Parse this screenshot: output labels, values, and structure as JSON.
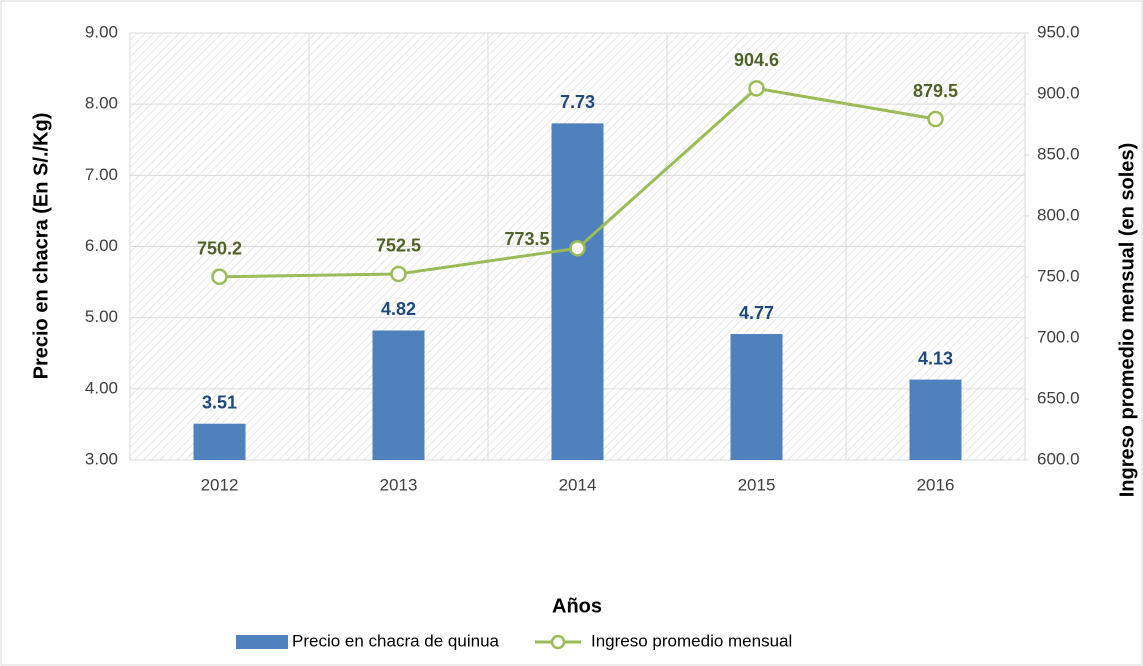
{
  "chart_data": {
    "type": "combo",
    "categories": [
      "2012",
      "2013",
      "2014",
      "2015",
      "2016"
    ],
    "series": [
      {
        "name": "Precio en chacra de quinua",
        "type": "bar",
        "axis": "y",
        "color": "#4f81bd",
        "values": [
          3.51,
          4.82,
          7.73,
          4.77,
          4.13
        ]
      },
      {
        "name": "Ingreso promedio mensual",
        "type": "line",
        "axis": "y2",
        "color": "#9bbb59",
        "values": [
          750.2,
          752.5,
          773.5,
          904.6,
          879.5
        ]
      }
    ],
    "ylabel": "Precio en chacra (En S/./Kg)",
    "y2label": "Ingreso promedio mensual (en soles)",
    "xlabel": "Años",
    "ylim": [
      3,
      9
    ],
    "yticks": [
      {
        "value": 3,
        "label": "3.00"
      },
      {
        "value": 4,
        "label": "4.00"
      },
      {
        "value": 5,
        "label": "5.00"
      },
      {
        "value": 6,
        "label": "6.00"
      },
      {
        "value": 7,
        "label": "7.00"
      },
      {
        "value": 8,
        "label": "8.00"
      },
      {
        "value": 9,
        "label": "9.00"
      }
    ],
    "y2lim": [
      600,
      950
    ],
    "y2ticks": [
      {
        "value": 600,
        "label": "600.0"
      },
      {
        "value": 650,
        "label": "650.0"
      },
      {
        "value": 700,
        "label": "700.0"
      },
      {
        "value": 750,
        "label": "750.0"
      },
      {
        "value": 800,
        "label": "800.0"
      },
      {
        "value": 850,
        "label": "850.0"
      },
      {
        "value": 900,
        "label": "900.0"
      },
      {
        "value": 950,
        "label": "950.0"
      }
    ],
    "grid": true,
    "legend": "bottom"
  }
}
